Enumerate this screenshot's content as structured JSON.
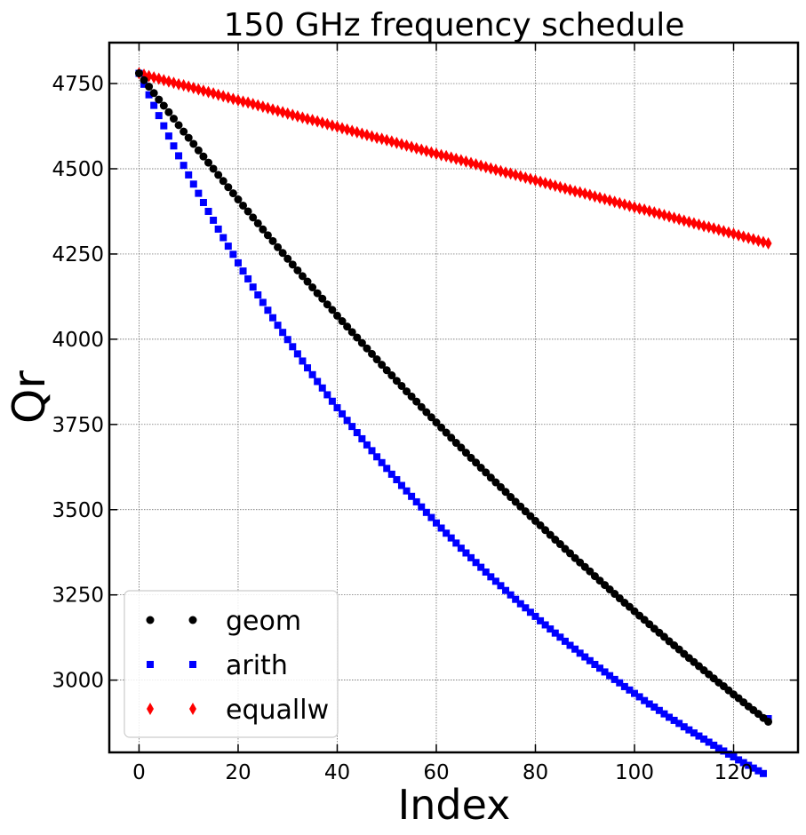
{
  "chart_data": {
    "type": "scatter",
    "title": "150 GHz frequency schedule",
    "xlabel": "Index",
    "ylabel": "Qr",
    "xlim": [
      -6,
      133
    ],
    "ylim": [
      2788,
      4870
    ],
    "xticks": [
      "0",
      "20",
      "40",
      "60",
      "80",
      "100",
      "120"
    ],
    "yticks": [
      "3000",
      "3250",
      "3500",
      "3750",
      "4000",
      "4250",
      "4500",
      "4750"
    ],
    "grid": true,
    "legend_position": "lower-left",
    "x": {
      "start": 0,
      "end": 127,
      "count": 128
    },
    "series": [
      {
        "name": "geom",
        "marker": "circle",
        "color": "#000000",
        "values": [
          4780,
          4760,
          4741,
          4722,
          4703,
          4685,
          4666,
          4647,
          4628,
          4609,
          4591,
          4573,
          4554,
          4536,
          4518,
          4500,
          4482,
          4464,
          4446,
          4428,
          4410,
          4392,
          4375,
          4357,
          4340,
          4322,
          4305,
          4288,
          4270,
          4253,
          4236,
          4219,
          4202,
          4185,
          4169,
          4152,
          4135,
          4119,
          4102,
          4086,
          4069,
          4053,
          4037,
          4021,
          4005,
          3989,
          3973,
          3957,
          3941,
          3925,
          3909,
          3894,
          3878,
          3863,
          3847,
          3832,
          3817,
          3801,
          3786,
          3771,
          3756,
          3741,
          3726,
          3711,
          3696,
          3682,
          3667,
          3652,
          3638,
          3623,
          3609,
          3594,
          3580,
          3566,
          3552,
          3537,
          3523,
          3509,
          3495,
          3481,
          3467,
          3454,
          3440,
          3426,
          3412,
          3399,
          3385,
          3372,
          3358,
          3345,
          3332,
          3319,
          3305,
          3292,
          3279,
          3266,
          3253,
          3240,
          3227,
          3215,
          3202,
          3189,
          3177,
          3164,
          3151,
          3139,
          3127,
          3114,
          3102,
          3090,
          3077,
          3065,
          3053,
          3041,
          3029,
          3017,
          3005,
          2993,
          2982,
          2970,
          2958,
          2947,
          2935,
          2923,
          2912,
          2901,
          2889,
          2878
        ]
      },
      {
        "name": "arith",
        "marker": "square",
        "color": "#0000ff",
        "values": [
          4780,
          4748,
          4717,
          4686,
          4656,
          4626,
          4596,
          4567,
          4538,
          4510,
          4482,
          4455,
          4428,
          4401,
          4375,
          4349,
          4323,
          4298,
          4273,
          4249,
          4224,
          4200,
          4177,
          4153,
          4130,
          4108,
          4085,
          4063,
          4041,
          4020,
          3999,
          3978,
          3957,
          3936,
          3916,
          3896,
          3876,
          3857,
          3837,
          3818,
          3799,
          3781,
          3762,
          3744,
          3726,
          3708,
          3690,
          3673,
          3655,
          3638,
          3621,
          3604,
          3588,
          3571,
          3555,
          3539,
          3523,
          3508,
          3492,
          3477,
          3461,
          3446,
          3431,
          3417,
          3402,
          3387,
          3373,
          3359,
          3345,
          3331,
          3317,
          3303,
          3290,
          3277,
          3263,
          3250,
          3237,
          3224,
          3212,
          3199,
          3187,
          3174,
          3162,
          3150,
          3138,
          3126,
          3114,
          3102,
          3091,
          3079,
          3068,
          3057,
          3046,
          3035,
          3024,
          3013,
          3002,
          2992,
          2981,
          2971,
          2961,
          2951,
          2940,
          2930,
          2921,
          2911,
          2901,
          2891,
          2882,
          2873,
          2863,
          2854,
          2845,
          2836,
          2827,
          2818,
          2809,
          2800,
          2792,
          2783,
          2775,
          2766,
          2758,
          2750,
          2742,
          2734,
          2726,
          2887
        ]
      },
      {
        "name": "equallw",
        "marker": "thin_diamond",
        "color": "#ff0000",
        "values": [
          4780,
          4776,
          4772,
          4768,
          4764,
          4760,
          4756,
          4752,
          4748,
          4745,
          4741,
          4737,
          4733,
          4729,
          4725,
          4721,
          4717,
          4713,
          4709,
          4705,
          4701,
          4697,
          4694,
          4690,
          4686,
          4682,
          4678,
          4674,
          4670,
          4666,
          4662,
          4658,
          4654,
          4650,
          4646,
          4643,
          4639,
          4635,
          4631,
          4627,
          4623,
          4619,
          4615,
          4611,
          4607,
          4603,
          4599,
          4595,
          4591,
          4588,
          4584,
          4580,
          4576,
          4572,
          4568,
          4564,
          4560,
          4556,
          4552,
          4548,
          4544,
          4540,
          4537,
          4533,
          4529,
          4525,
          4521,
          4517,
          4513,
          4509,
          4505,
          4501,
          4497,
          4493,
          4489,
          4486,
          4482,
          4478,
          4474,
          4470,
          4466,
          4462,
          4458,
          4454,
          4450,
          4446,
          4442,
          4438,
          4434,
          4431,
          4427,
          4423,
          4419,
          4415,
          4411,
          4407,
          4403,
          4399,
          4395,
          4391,
          4387,
          4383,
          4380,
          4376,
          4372,
          4368,
          4364,
          4360,
          4356,
          4352,
          4348,
          4344,
          4340,
          4336,
          4332,
          4329,
          4325,
          4321,
          4317,
          4313,
          4309,
          4305,
          4301,
          4297,
          4293,
          4289,
          4285,
          4281
        ]
      }
    ]
  }
}
